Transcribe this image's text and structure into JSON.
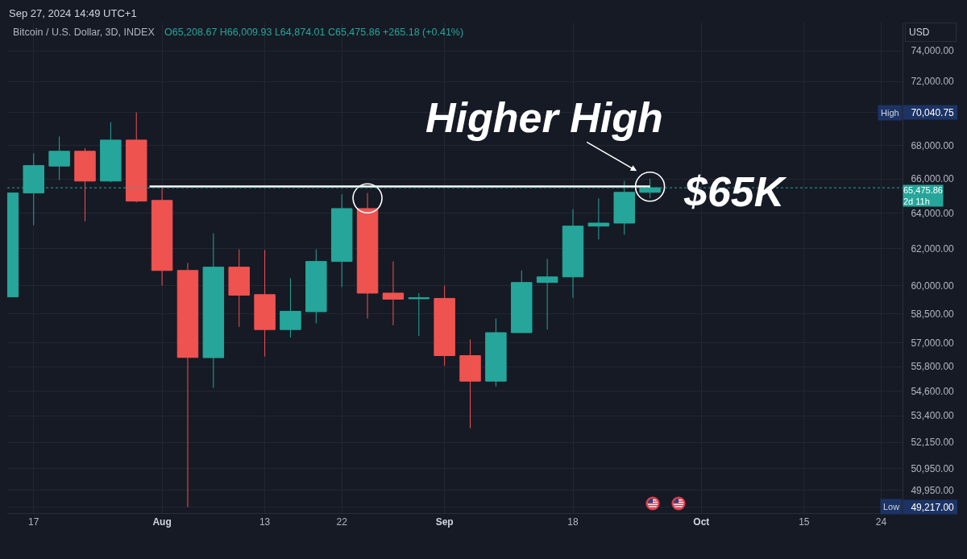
{
  "chart_data": {
    "type": "candlestick",
    "title": "Bitcoin / U.S. Dollar, 3D, INDEX",
    "subtitle": "O65,208.67 H66,009.93 L64,874.01 C65,475.86 +265.18 (+0.41%)",
    "ylabel": "USD",
    "series": [
      {
        "x": [
          "2024-07-14",
          "2024-07-17",
          "2024-07-20",
          "2024-07-23",
          "2024-07-26",
          "2024-07-29",
          "2024-08-01",
          "2024-08-04",
          "2024-08-07",
          "2024-08-10",
          "2024-08-13",
          "2024-08-16",
          "2024-08-19",
          "2024-08-22",
          "2024-08-25",
          "2024-08-28",
          "2024-08-31",
          "2024-09-03",
          "2024-09-06",
          "2024-09-09",
          "2024-09-12",
          "2024-09-15",
          "2024-09-18",
          "2024-09-21",
          "2024-09-24",
          "2024-09-27"
        ],
        "ohlc": [
          [
            59390,
            65170,
            59390,
            65170
          ],
          [
            65170,
            67520,
            63320,
            66790
          ],
          [
            66760,
            68550,
            65930,
            67650
          ],
          [
            67650,
            67840,
            63550,
            65870
          ],
          [
            65870,
            69430,
            65800,
            68330
          ],
          [
            68330,
            70040.75,
            64630,
            64700
          ],
          [
            64740,
            65550,
            59990,
            60810
          ],
          [
            60810,
            61220,
            49217,
            56260
          ],
          [
            56250,
            62860,
            54750,
            60990
          ],
          [
            60990,
            61970,
            57820,
            59480
          ],
          [
            59510,
            61930,
            56310,
            57680
          ],
          [
            57680,
            60390,
            57270,
            58630
          ],
          [
            58610,
            61970,
            58000,
            61300
          ],
          [
            61300,
            65090,
            59910,
            64270
          ],
          [
            64270,
            65170,
            58250,
            59590
          ],
          [
            59590,
            61300,
            57900,
            59270
          ],
          [
            59290,
            59590,
            57340,
            59340
          ],
          [
            59310,
            59990,
            55840,
            56350
          ],
          [
            56350,
            57170,
            52810,
            55080
          ],
          [
            55080,
            58250,
            54820,
            57520
          ],
          [
            57520,
            60810,
            57520,
            60160
          ],
          [
            60160,
            61440,
            57680,
            60460
          ],
          [
            60460,
            64240,
            59340,
            63270
          ],
          [
            63270,
            64860,
            62520,
            63440
          ],
          [
            63440,
            65880,
            62790,
            65210
          ],
          [
            65208.67,
            66009.93,
            64874.01,
            65475.86
          ]
        ],
        "colors": [
          "#26a69a",
          "#26a69a",
          "#26a69a",
          "#ef5350",
          "#26a69a",
          "#ef5350",
          "#ef5350",
          "#ef5350",
          "#26a69a",
          "#ef5350",
          "#ef5350",
          "#26a69a",
          "#26a69a",
          "#26a69a",
          "#ef5350",
          "#ef5350",
          "#26a69a",
          "#ef5350",
          "#ef5350",
          "#26a69a",
          "#26a69a",
          "#26a69a",
          "#26a69a",
          "#26a69a",
          "#26a69a",
          "#26a69a"
        ]
      },
      {
        "type": "line",
        "x": [
          "2024-07-30T13:00",
          "2024-09-27"
        ],
        "values": [
          65550,
          65550
        ],
        "color": "#ffffff"
      },
      {
        "type": "scatter",
        "x": [
          "2024-08-25",
          "2024-09-27"
        ],
        "values": [
          64860,
          65540
        ],
        "color": "#ffffff",
        "marker": "circle"
      }
    ],
    "xlim": [
      "2024-07-13T22:00",
      "2024-10-26T12:00"
    ],
    "xticks": [
      {
        "value": "2024-07-17",
        "label": "17"
      },
      {
        "value": "2024-08-01",
        "label": "Aug"
      },
      {
        "value": "2024-08-13",
        "label": "13"
      },
      {
        "value": "2024-08-22",
        "label": "22"
      },
      {
        "value": "2024-09-03",
        "label": "Sep"
      },
      {
        "value": "2024-09-18",
        "label": "18"
      },
      {
        "value": "2024-10-03",
        "label": "Oct"
      },
      {
        "value": "2024-10-15",
        "label": "15"
      },
      {
        "value": "2024-10-24",
        "label": "24"
      }
    ],
    "ylim": [
      48950,
      75900
    ],
    "yticks": [
      {
        "value": 74000,
        "label": "74,000.00"
      },
      {
        "value": 72000,
        "label": "72,000.00"
      },
      {
        "value": 70040.75,
        "label": "70,040.75"
      },
      {
        "value": 68000,
        "label": "68,000.00"
      },
      {
        "value": 66000,
        "label": "66,000.00"
      },
      {
        "value": 64000,
        "label": "64,000.00"
      },
      {
        "value": 62000,
        "label": "62,000.00"
      },
      {
        "value": 60000,
        "label": "60,000.00"
      },
      {
        "value": 58500,
        "label": "58,500.00"
      },
      {
        "value": 57000,
        "label": "57,000.00"
      },
      {
        "value": 55800,
        "label": "55,800.00"
      },
      {
        "value": 54600,
        "label": "54,600.00"
      },
      {
        "value": 53400,
        "label": "53,400.00"
      },
      {
        "value": 52150,
        "label": "52,150.00"
      },
      {
        "value": 50950,
        "label": "50,950.00"
      },
      {
        "value": 49950,
        "label": "49,950.00"
      },
      {
        "value": 49217,
        "label": "49,217.00"
      }
    ],
    "log": true,
    "grid": true,
    "ref_lines": [
      {
        "axis": "y",
        "value": 65475.86,
        "label": "65,475.86\n2d 11h",
        "color": "#26a69a",
        "line_style": "dotted"
      }
    ],
    "annotations": [
      "Sep 27, 2024 14:49 UTC+1",
      {
        "text": "Higher High",
        "x": "2024-09-27",
        "y": 66009.93
      },
      {
        "text": "$65K",
        "x": "2024-10-07",
        "y": 65550
      },
      {
        "text": "High",
        "y": 70040.75
      },
      {
        "text": "Low",
        "y": 49217
      }
    ]
  }
}
